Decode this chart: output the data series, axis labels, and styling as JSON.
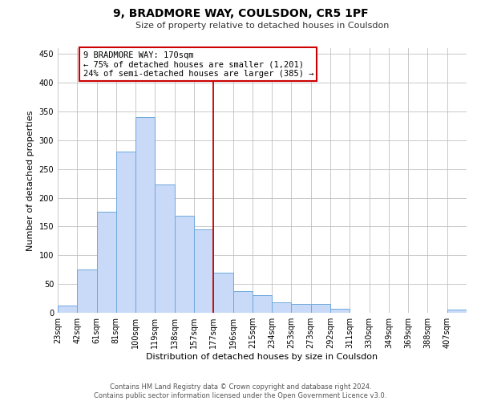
{
  "title": "9, BRADMORE WAY, COULSDON, CR5 1PF",
  "subtitle": "Size of property relative to detached houses in Coulsdon",
  "xlabel": "Distribution of detached houses by size in Coulsdon",
  "ylabel": "Number of detached properties",
  "bar_labels": [
    "23sqm",
    "42sqm",
    "61sqm",
    "81sqm",
    "100sqm",
    "119sqm",
    "138sqm",
    "157sqm",
    "177sqm",
    "196sqm",
    "215sqm",
    "234sqm",
    "253sqm",
    "273sqm",
    "292sqm",
    "311sqm",
    "330sqm",
    "349sqm",
    "369sqm",
    "388sqm",
    "407sqm"
  ],
  "bar_values": [
    13,
    75,
    175,
    280,
    340,
    223,
    168,
    145,
    70,
    38,
    30,
    18,
    15,
    15,
    7,
    0,
    0,
    0,
    0,
    0,
    5
  ],
  "bar_color": "#c9daf8",
  "bar_edge_color": "#6fa8dc",
  "vline_x": 8,
  "vline_color": "#cc0000",
  "annotation_line1": "9 BRADMORE WAY: 170sqm",
  "annotation_line2": "← 75% of detached houses are smaller (1,201)",
  "annotation_line3": "24% of semi-detached houses are larger (385) →",
  "annotation_box_color": "#ffffff",
  "annotation_box_edge": "#cc0000",
  "ylim": [
    0,
    460
  ],
  "yticks": [
    0,
    50,
    100,
    150,
    200,
    250,
    300,
    350,
    400,
    450
  ],
  "footer_line1": "Contains HM Land Registry data © Crown copyright and database right 2024.",
  "footer_line2": "Contains public sector information licensed under the Open Government Licence v3.0.",
  "background_color": "#ffffff",
  "grid_color": "#c0c0c0",
  "title_fontsize": 10,
  "subtitle_fontsize": 8,
  "ylabel_fontsize": 8,
  "xlabel_fontsize": 8,
  "tick_fontsize": 7,
  "footer_fontsize": 6,
  "annotation_fontsize": 7.5
}
